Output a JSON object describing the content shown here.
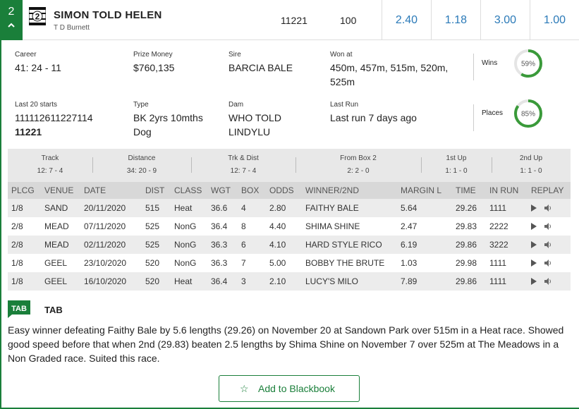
{
  "runner": {
    "box_number": "2",
    "expand_icon": "chevron-up-icon",
    "name": "SIMON TOLD HELEN",
    "trainer": "T D Burnett",
    "form": "11221",
    "rating": "100",
    "odds": [
      "2.40",
      "1.18",
      "3.00",
      "1.00"
    ]
  },
  "details": {
    "career_label": "Career",
    "career_value": "41: 24 - 11",
    "prize_label": "Prize Money",
    "prize_value": "$760,135",
    "sire_label": "Sire",
    "sire_value": "BARCIA BALE",
    "won_at_label": "Won at",
    "won_at_value": "450m, 457m, 515m, 520m, 525m",
    "last20_label": "Last 20 starts",
    "last20_value": "111112611227114",
    "last20_bold": "11221",
    "type_label": "Type",
    "type_value": "BK 2yrs 10mths Dog",
    "dam_label": "Dam",
    "dam_value": "WHO TOLD LINDYLU",
    "last_run_label": "Last Run",
    "last_run_value": "Last run 7 days ago",
    "wins_label": "Wins",
    "wins_pct": "59%",
    "wins_fraction": 0.59,
    "places_label": "Places",
    "places_pct": "85%",
    "places_fraction": 0.85
  },
  "stats": [
    {
      "title": "Track",
      "value": "12: 7 - 4"
    },
    {
      "title": "Distance",
      "value": "34: 20 - 9"
    },
    {
      "title": "Trk & Dist",
      "value": "12: 7 - 4"
    },
    {
      "title": "From Box 2",
      "value": "2: 2 - 0"
    },
    {
      "title": "1st Up",
      "value": "1: 1 - 0"
    },
    {
      "title": "2nd Up",
      "value": "1: 1 - 0"
    }
  ],
  "table": {
    "headers": [
      "PLCG",
      "VENUE",
      "DATE",
      "DIST",
      "CLASS",
      "WGT",
      "BOX",
      "ODDS",
      "WINNER/2ND",
      "MARGIN L",
      "TIME",
      "IN RUN",
      "REPLAY"
    ],
    "rows": [
      [
        "1/8",
        "SAND",
        "20/11/2020",
        "515",
        "Heat",
        "36.6",
        "4",
        "2.80",
        "FAITHY BALE",
        "5.64",
        "29.26",
        "1111"
      ],
      [
        "2/8",
        "MEAD",
        "07/11/2020",
        "525",
        "NonG",
        "36.4",
        "8",
        "4.40",
        "SHIMA SHINE",
        "2.47",
        "29.83",
        "2222"
      ],
      [
        "2/8",
        "MEAD",
        "02/11/2020",
        "525",
        "NonG",
        "36.3",
        "6",
        "4.10",
        "HARD STYLE RICO",
        "6.19",
        "29.86",
        "3222"
      ],
      [
        "1/8",
        "GEEL",
        "23/10/2020",
        "520",
        "NonG",
        "36.3",
        "7",
        "5.00",
        "BOBBY THE BRUTE",
        "1.03",
        "29.98",
        "1111"
      ],
      [
        "1/8",
        "GEEL",
        "16/10/2020",
        "520",
        "Heat",
        "36.4",
        "3",
        "2.10",
        "LUCY'S MILO",
        "7.89",
        "29.86",
        "1111"
      ]
    ]
  },
  "comment": {
    "logo_text": "TAB",
    "title": "TAB",
    "text": "Easy winner defeating Faithy Bale by 5.6 lengths (29.26) on November 20 at Sandown Park over 515m in a Heat race. Showed good speed before that when 2nd (29.83) beaten 2.5 lengths by Shima Shine on November 7 over 525m at The Meadows in a Non Graded race. Suited this race."
  },
  "blackbook": {
    "label": "Add to Blackbook",
    "icon": "star-outline-icon"
  },
  "colors": {
    "brand_green": "#1a7f3a",
    "odds_blue": "#2b7ab8",
    "ring_green": "#3a9a3a"
  }
}
